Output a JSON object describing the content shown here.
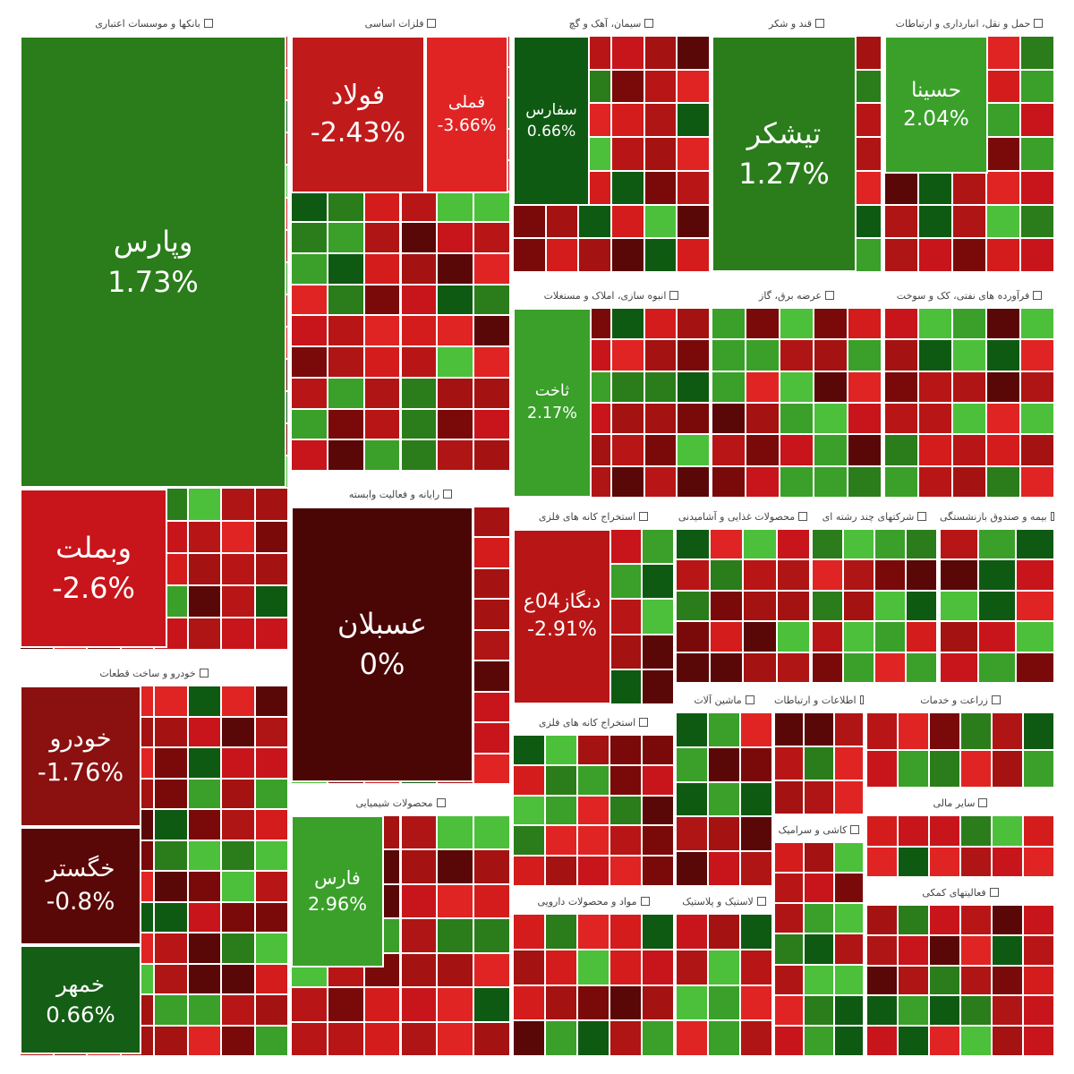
{
  "sectors": [
    {
      "title": "بانکها و موسسات اعتباری",
      "tiles": [
        {
          "label": "وپارس",
          "change": "1.73%"
        },
        {
          "label": "وبملت",
          "change": "-2.6%"
        }
      ]
    },
    {
      "title": "فلزات اساسی",
      "tiles": [
        {
          "label": "فولاد",
          "change": "-2.43%"
        },
        {
          "label": "فملی",
          "change": "-3.66%"
        }
      ]
    },
    {
      "title": "سیمان، آهک و گچ",
      "tiles": [
        {
          "label": "سفارس",
          "change": "0.66%"
        }
      ]
    },
    {
      "title": "قند و شکر",
      "tiles": [
        {
          "label": "تیشکر",
          "change": "1.27%"
        }
      ]
    },
    {
      "title": "حمل و نقل، انبارداری و ارتباطات",
      "tiles": [
        {
          "label": "حسینا",
          "change": "2.04%"
        }
      ]
    },
    {
      "title": "انبوه سازی، املاک و مستغلات",
      "tiles": [
        {
          "label": "ثاخت",
          "change": "2.17%"
        }
      ]
    },
    {
      "title": "عرضه برق، گاز",
      "tiles": []
    },
    {
      "title": "فرآورده های نفتی، کک و سوخت",
      "tiles": []
    },
    {
      "title": "خودرو و ساخت قطعات",
      "tiles": [
        {
          "label": "خودرو",
          "change": "-1.76%"
        },
        {
          "label": "خگستر",
          "change": "-0.8%"
        },
        {
          "label": "خمهر",
          "change": "0.66%"
        }
      ]
    },
    {
      "title": "رایانه و فعالیت وابسته",
      "tiles": [
        {
          "label": "عسبلان",
          "change": "0%"
        }
      ]
    },
    {
      "title": "محصولات شیمیایی",
      "tiles": [
        {
          "label": "فارس",
          "change": "2.96%"
        }
      ]
    },
    {
      "title": "استخراج کانه های فلزی",
      "tiles": [
        {
          "label": "دنگاز04ع",
          "change": "-2.91%"
        }
      ]
    },
    {
      "title": "محصولات غذایی و آشامیدنی",
      "tiles": []
    },
    {
      "title": "شرکتهای چند رشته ای",
      "tiles": []
    },
    {
      "title": "بیمه و صندوق بازنشستگی",
      "tiles": []
    },
    {
      "title": "استخراج کانه های فلزی",
      "tiles": []
    },
    {
      "title": "ماشین آلات",
      "tiles": []
    },
    {
      "title": "اطلاعات و ارتباطات",
      "tiles": []
    },
    {
      "title": "زراعت و خدمات",
      "tiles": []
    },
    {
      "title": "مواد و محصولات دارویی",
      "tiles": []
    },
    {
      "title": "لاستیک و پلاستیک",
      "tiles": []
    },
    {
      "title": "کاشی و سرامیک",
      "tiles": []
    },
    {
      "title": "سایر مالی",
      "tiles": []
    },
    {
      "title": "فعالیتهای کمکی",
      "tiles": []
    }
  ]
}
